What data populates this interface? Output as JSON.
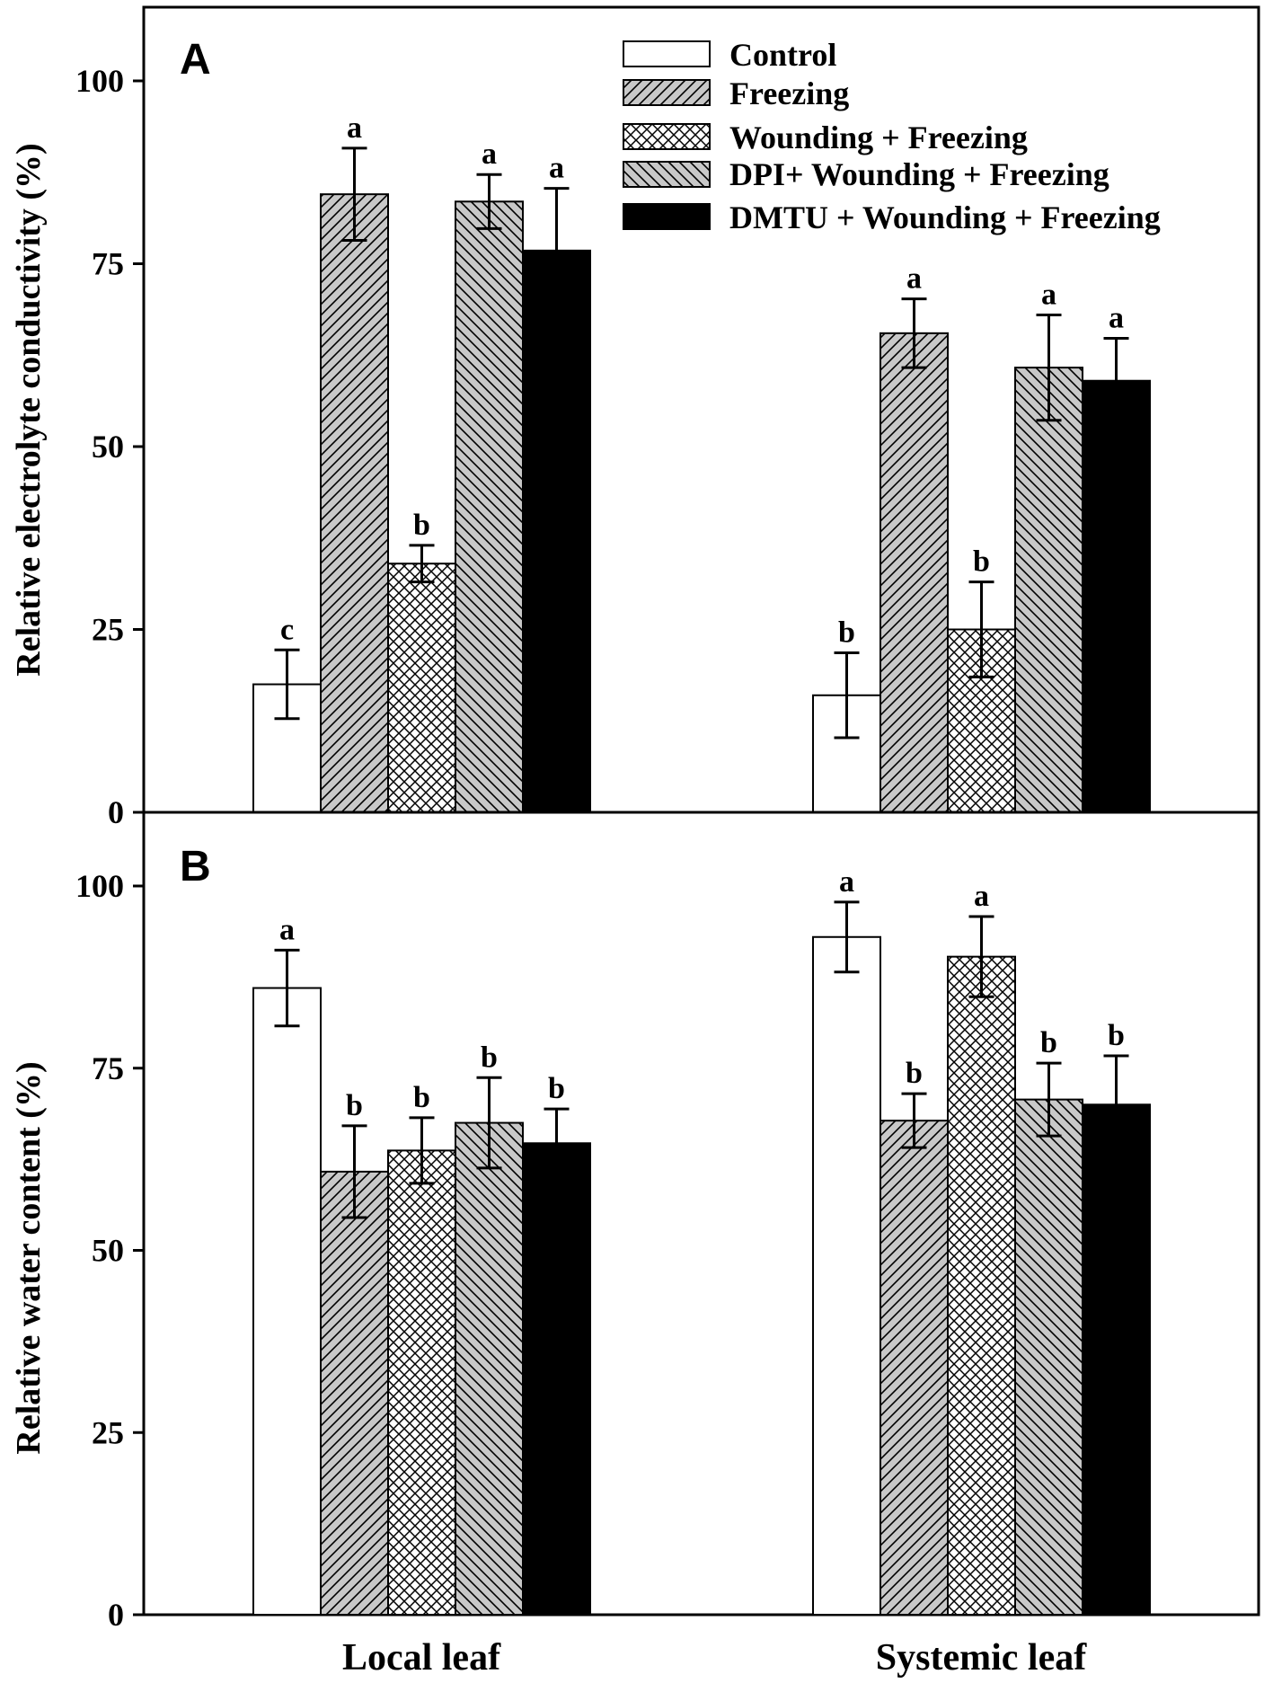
{
  "chart_data": [
    {
      "panel": "A",
      "type": "bar",
      "categories": [
        "Local leaf",
        "Systemic leaf"
      ],
      "ylabel": "Relative electrolyte conductivity (%)",
      "ylim": [
        0,
        110
      ],
      "yticks": [
        0,
        25,
        50,
        75,
        100
      ],
      "series": [
        {
          "name": "Control",
          "values": [
            17.5,
            16
          ],
          "errors": [
            4.7,
            5.8
          ],
          "labels": [
            "c",
            "b"
          ]
        },
        {
          "name": "Freezing",
          "values": [
            84.5,
            65.5
          ],
          "errors": [
            6.3,
            4.7
          ],
          "labels": [
            "a",
            "a"
          ]
        },
        {
          "name": "Wounding + Freezing",
          "values": [
            34,
            25
          ],
          "errors": [
            2.5,
            6.5
          ],
          "labels": [
            "b",
            "b"
          ]
        },
        {
          "name": "DPI+ Wounding + Freezing",
          "values": [
            83.5,
            60.8
          ],
          "errors": [
            3.7,
            7.2
          ],
          "labels": [
            "a",
            "a"
          ]
        },
        {
          "name": "DMTU + Wounding + Freezing",
          "values": [
            76.8,
            59
          ],
          "errors": [
            8.5,
            5.8
          ],
          "labels": [
            "a",
            "a"
          ]
        }
      ]
    },
    {
      "panel": "B",
      "type": "bar",
      "categories": [
        "Local leaf",
        "Systemic leaf"
      ],
      "ylabel": "Relative water content (%)",
      "ylim": [
        0,
        110
      ],
      "yticks": [
        0,
        25,
        50,
        75,
        100
      ],
      "series": [
        {
          "name": "Control",
          "values": [
            86,
            93
          ],
          "errors": [
            5.2,
            4.8
          ],
          "labels": [
            "a",
            "a"
          ]
        },
        {
          "name": "Freezing",
          "values": [
            60.8,
            67.8
          ],
          "errors": [
            6.3,
            3.7
          ],
          "labels": [
            "b",
            "b"
          ]
        },
        {
          "name": "Wounding + Freezing",
          "values": [
            63.7,
            90.3
          ],
          "errors": [
            4.5,
            5.5
          ],
          "labels": [
            "b",
            "a"
          ]
        },
        {
          "name": "DPI+ Wounding + Freezing",
          "values": [
            67.5,
            70.7
          ],
          "errors": [
            6.2,
            5
          ],
          "labels": [
            "b",
            "b"
          ]
        },
        {
          "name": "DMTU + Wounding + Freezing",
          "values": [
            64.7,
            70
          ],
          "errors": [
            4.7,
            6.7
          ],
          "labels": [
            "b",
            "b"
          ]
        }
      ]
    }
  ],
  "legend": {
    "entries": [
      "Control",
      "Freezing",
      "Wounding + Freezing",
      "DPI+ Wounding + Freezing",
      "DMTU + Wounding + Freezing"
    ],
    "location": "top-right of panel A"
  },
  "styles": {
    "bar_outline": "#000000",
    "control_fill": "#ffffff",
    "hatch_color": "#000000",
    "dmtu_fill": "#000000"
  }
}
